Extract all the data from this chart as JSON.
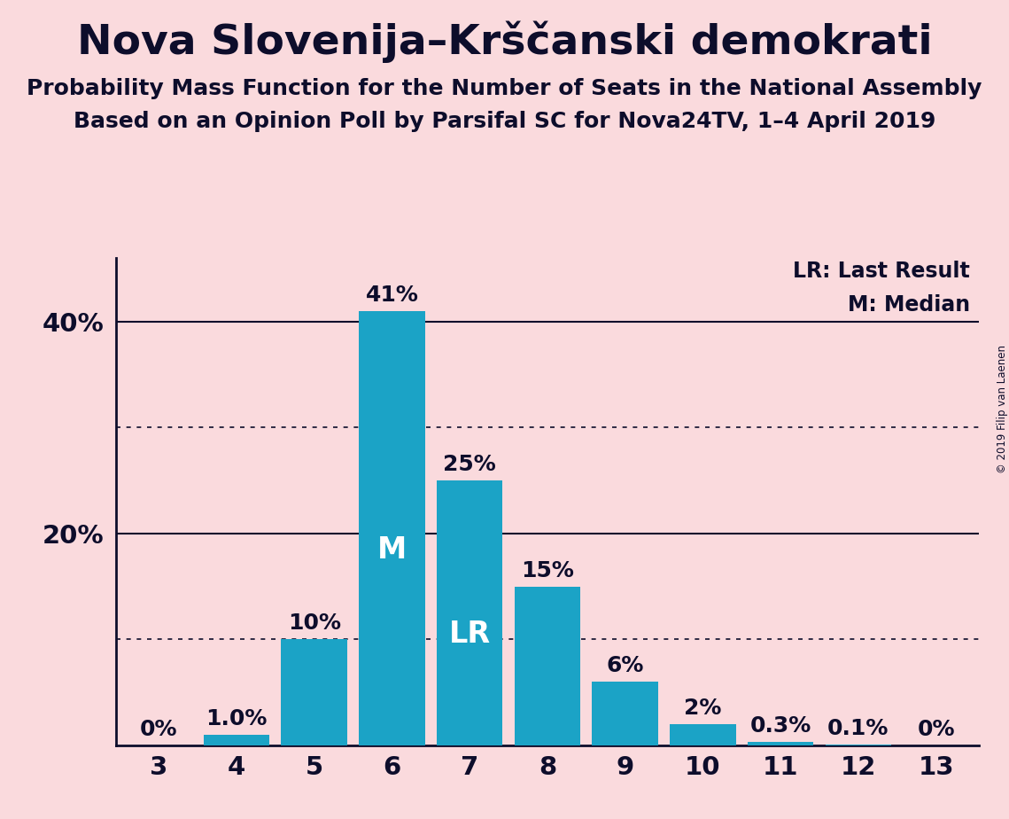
{
  "title": "Nova Slovenija–Krščanski demokrati",
  "subtitle1": "Probability Mass Function for the Number of Seats in the National Assembly",
  "subtitle2": "Based on an Opinion Poll by Parsifal SC for Nova24TV, 1–4 April 2019",
  "copyright": "© 2019 Filip van Laenen",
  "seats": [
    3,
    4,
    5,
    6,
    7,
    8,
    9,
    10,
    11,
    12,
    13
  ],
  "probs": [
    0.0,
    1.0,
    10.0,
    41.0,
    25.0,
    15.0,
    6.0,
    2.0,
    0.3,
    0.1,
    0.0
  ],
  "bar_labels": [
    "0%",
    "1.0%",
    "10%",
    "41%",
    "25%",
    "15%",
    "6%",
    "2%",
    "0.3%",
    "0.1%",
    "0%"
  ],
  "bar_color": "#1BA3C6",
  "background_color": "#FADADD",
  "text_color": "#0D0D2B",
  "median_seat": 6,
  "lr_seat": 7,
  "yticks": [
    20,
    40
  ],
  "dotted_lines": [
    10,
    30
  ],
  "ylim": [
    0,
    46
  ],
  "legend_lr": "LR: Last Result",
  "legend_m": "M: Median",
  "title_fontsize": 34,
  "subtitle_fontsize": 18,
  "bar_label_fontsize": 18,
  "label_inside_fontsize": 24,
  "axis_label_fontsize": 21
}
